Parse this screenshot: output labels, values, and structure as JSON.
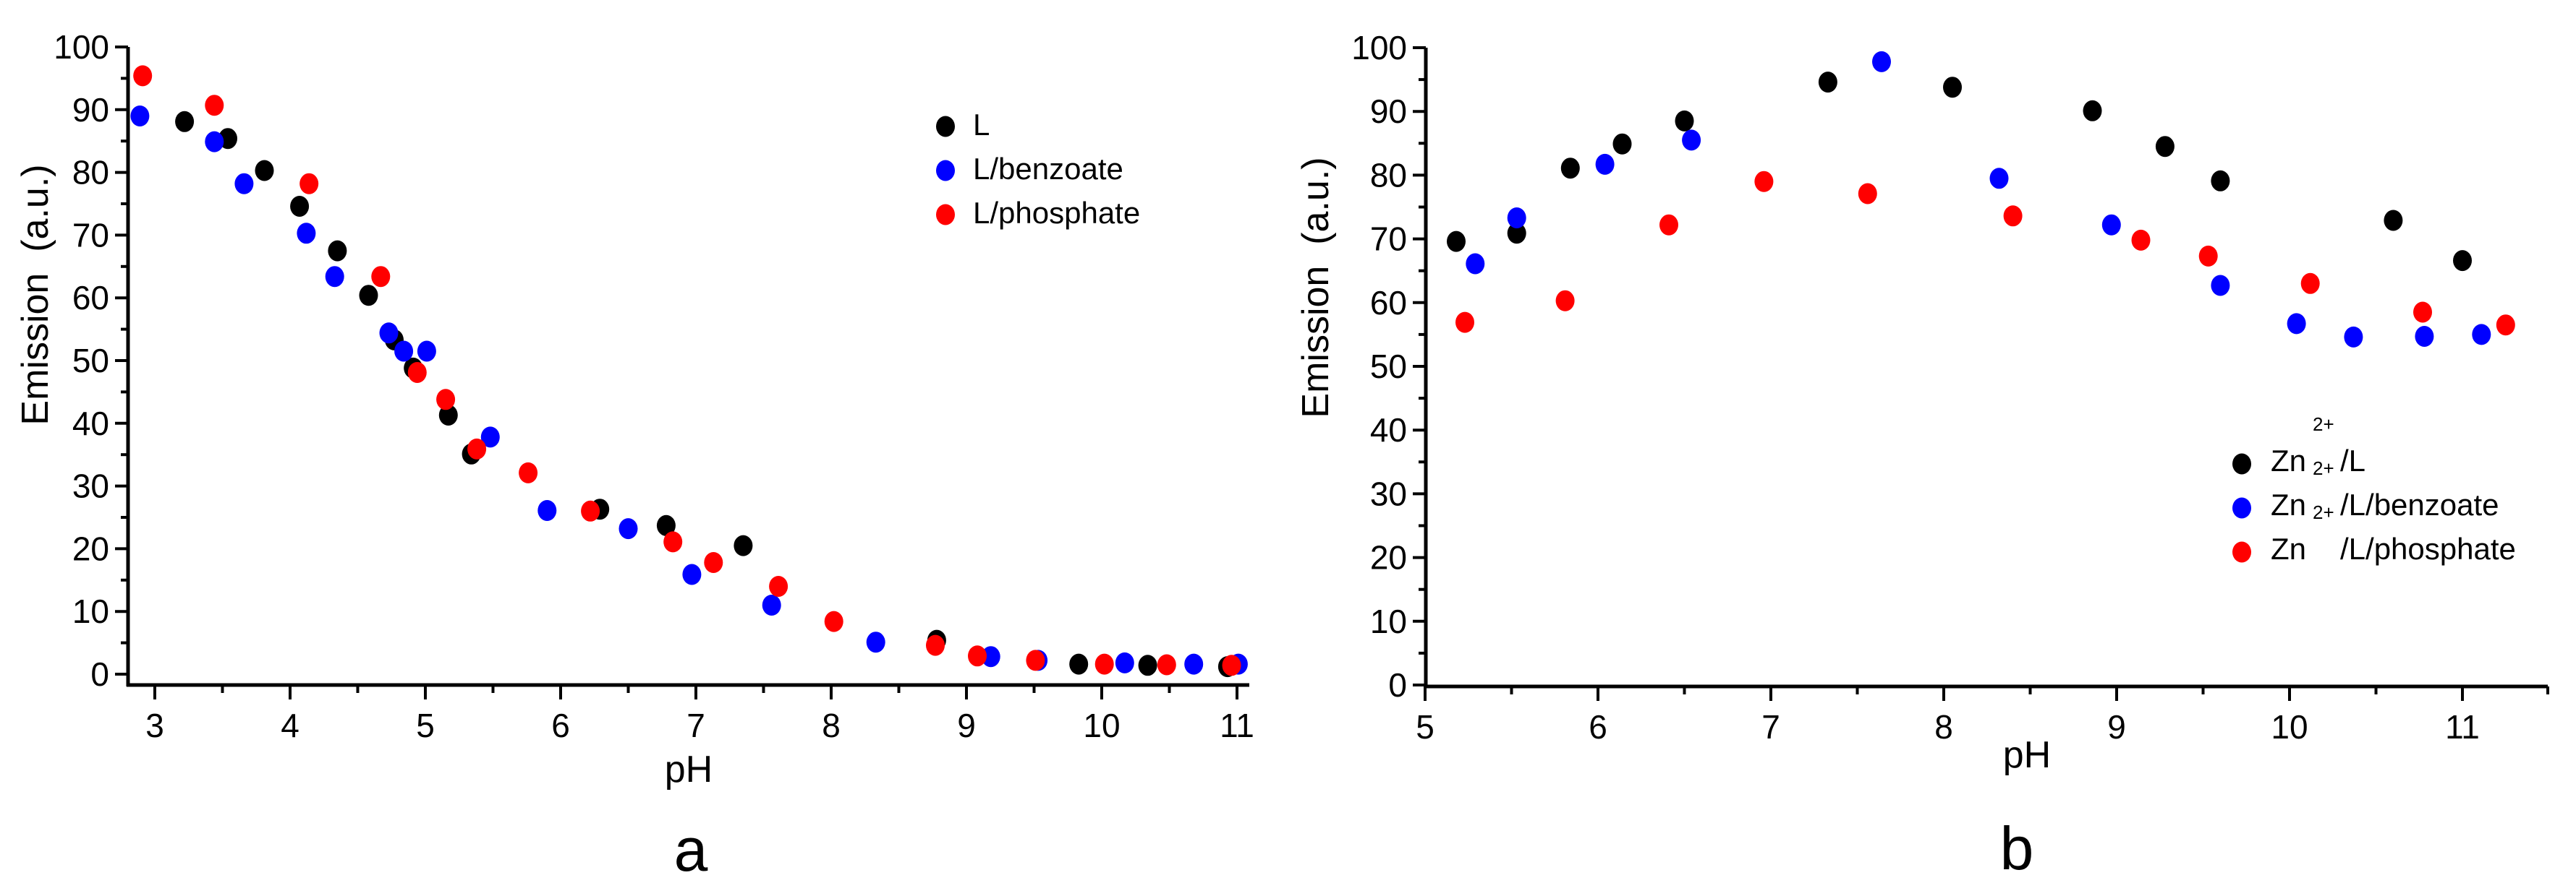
{
  "figure": {
    "panels": [
      {
        "id": "a",
        "caption": "a",
        "xlabel": "pH",
        "ylabel": "Emission  (a.u.)",
        "xticks": [
          "3",
          "4",
          "5",
          "6",
          "7",
          "8",
          "9",
          "10",
          "11"
        ],
        "yticks": [
          "0",
          "10",
          "20",
          "30",
          "40",
          "50",
          "60",
          "70",
          "80",
          "90",
          "100"
        ],
        "legend": [
          {
            "prefix": "",
            "sup": "",
            "label": "L",
            "color": "#000000"
          },
          {
            "prefix": "",
            "sup": "",
            "label": "L/benzoate",
            "color": "#0000ff"
          },
          {
            "prefix": "",
            "sup": "",
            "label": "L/phosphate",
            "color": "#ff0000"
          }
        ]
      },
      {
        "id": "b",
        "caption": "b",
        "xlabel": "pH",
        "ylabel": "Emission  (a.u.)",
        "xticks": [
          "5",
          "6",
          "7",
          "8",
          "9",
          "10",
          "11"
        ],
        "yticks": [
          "0",
          "10",
          "20",
          "30",
          "40",
          "50",
          "60",
          "70",
          "80",
          "90",
          "100"
        ],
        "legend": [
          {
            "prefix": "Zn",
            "sup": "2+",
            "label": "/L",
            "color": "#000000"
          },
          {
            "prefix": "Zn",
            "sup": "2+",
            "label": "/L/benzoate",
            "color": "#0000ff"
          },
          {
            "prefix": "Zn",
            "sup": "2+",
            "label": "/L/phosphate",
            "color": "#ff0000"
          }
        ]
      }
    ]
  },
  "chart_data": [
    {
      "type": "scatter",
      "title": "a",
      "xlabel": "pH",
      "ylabel": "Emission  (a.u.)",
      "xlim": [
        2.8,
        11.1
      ],
      "ylim": [
        -3,
        100
      ],
      "grid": false,
      "legend_position": "upper right",
      "series": [
        {
          "name": "L",
          "color": "#000000",
          "x": [
            3.22,
            3.54,
            3.81,
            4.07,
            4.35,
            4.58,
            4.77,
            4.91,
            5.17,
            5.34,
            6.29,
            6.78,
            7.35,
            8.78,
            9.83,
            10.34,
            10.93
          ],
          "y": [
            88.1,
            85.4,
            80.3,
            74.6,
            67.5,
            60.4,
            53.3,
            48.8,
            41.3,
            35.1,
            26.3,
            23.7,
            20.5,
            5.4,
            1.6,
            1.4,
            1.2
          ]
        },
        {
          "name": "L/benzoate",
          "color": "#0000ff",
          "x": [
            2.89,
            3.44,
            3.66,
            4.12,
            4.33,
            4.73,
            4.84,
            5.01,
            5.48,
            5.9,
            6.5,
            6.97,
            7.56,
            8.33,
            9.18,
            9.53,
            10.17,
            10.68,
            11.01
          ],
          "y": [
            89.0,
            84.9,
            78.2,
            70.3,
            63.4,
            54.4,
            51.5,
            51.5,
            37.8,
            26.1,
            23.2,
            15.9,
            11.0,
            5.1,
            2.8,
            2.2,
            1.8,
            1.6,
            1.6
          ]
        },
        {
          "name": "L/phosphate",
          "color": "#ff0000",
          "x": [
            2.91,
            3.44,
            4.14,
            4.67,
            4.94,
            5.15,
            5.38,
            5.76,
            6.22,
            6.83,
            7.13,
            7.61,
            8.02,
            8.77,
            9.08,
            9.51,
            10.02,
            10.48,
            10.96
          ],
          "y": [
            95.4,
            90.7,
            78.2,
            63.4,
            48.1,
            43.8,
            35.9,
            32.1,
            26.0,
            21.1,
            17.8,
            14.0,
            8.4,
            4.6,
            2.9,
            2.2,
            1.6,
            1.5,
            1.4
          ]
        }
      ]
    },
    {
      "type": "scatter",
      "title": "b",
      "xlabel": "pH",
      "ylabel": "Emission  (a.u.)",
      "xlim": [
        5,
        11.5
      ],
      "ylim": [
        0,
        100
      ],
      "grid": false,
      "legend_position": "lower right",
      "series": [
        {
          "name": "Zn2+/L",
          "color": "#000000",
          "x": [
            5.18,
            5.53,
            5.84,
            6.14,
            6.5,
            7.33,
            8.05,
            8.86,
            9.28,
            9.6,
            10.6,
            11.0
          ],
          "y": [
            69.6,
            70.9,
            81.1,
            84.9,
            88.5,
            94.6,
            93.8,
            90.1,
            84.5,
            79.1,
            72.9,
            66.6
          ]
        },
        {
          "name": "Zn2+/L/benzoate",
          "color": "#0000ff",
          "x": [
            5.29,
            5.53,
            6.04,
            6.54,
            7.64,
            8.32,
            8.97,
            9.6,
            10.04,
            10.37,
            10.78,
            11.11
          ],
          "y": [
            66.1,
            73.3,
            81.7,
            85.5,
            97.8,
            79.5,
            72.2,
            62.7,
            56.7,
            54.6,
            54.7,
            55.0
          ]
        },
        {
          "name": "Zn2+/L/phosphate",
          "color": "#ff0000",
          "x": [
            5.23,
            5.81,
            6.41,
            6.96,
            7.56,
            8.4,
            9.14,
            9.53,
            10.12,
            10.77,
            11.25
          ],
          "y": [
            56.9,
            60.3,
            72.2,
            79.0,
            77.1,
            73.6,
            69.8,
            67.3,
            63.0,
            58.5,
            56.5
          ]
        }
      ]
    }
  ]
}
